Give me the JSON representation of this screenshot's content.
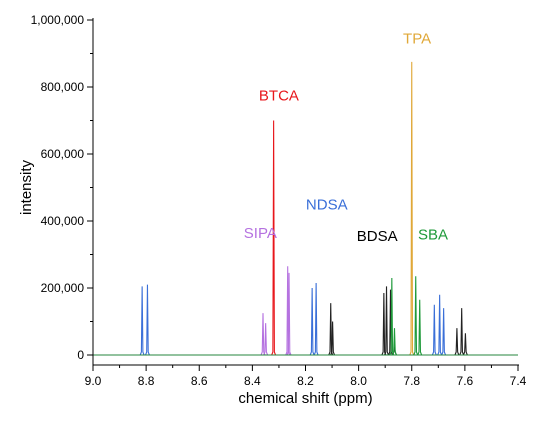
{
  "chart_data": {
    "type": "line",
    "xlabel": "chemical shift (ppm)",
    "ylabel": "intensity",
    "xlim": [
      9.0,
      7.4
    ],
    "ylim": [
      0,
      1000000
    ],
    "x_reversed": true,
    "x_ticks": [
      9.0,
      8.8,
      8.6,
      8.4,
      8.2,
      8.0,
      7.8,
      7.6,
      7.4
    ],
    "x_tick_labels": [
      "9.0",
      "8.8",
      "8.6",
      "8.4",
      "8.2",
      "8.0",
      "7.8",
      "7.6",
      "7.4"
    ],
    "y_ticks": [
      0,
      200000,
      400000,
      600000,
      800000,
      1000000
    ],
    "y_tick_labels": [
      "0",
      "200,000",
      "400,000",
      "600,000",
      "800,000",
      "1,000,000"
    ],
    "grid": false,
    "legend": "none",
    "series": [
      {
        "name": "BTCA",
        "color": "#e8161b",
        "peaks": [
          {
            "x": 8.32,
            "y": 700000
          }
        ]
      },
      {
        "name": "TPA",
        "color": "#e0a838",
        "peaks": [
          {
            "x": 7.8,
            "y": 875000
          }
        ]
      },
      {
        "name": "NDSA",
        "color": "#3a6fd8",
        "peaks": [
          {
            "x": 8.815,
            "y": 205000
          },
          {
            "x": 8.795,
            "y": 210000
          },
          {
            "x": 8.175,
            "y": 200000
          },
          {
            "x": 8.16,
            "y": 215000
          },
          {
            "x": 7.715,
            "y": 150000
          },
          {
            "x": 7.695,
            "y": 180000
          },
          {
            "x": 7.68,
            "y": 140000
          }
        ]
      },
      {
        "name": "SIPA",
        "color": "#b572e0",
        "peaks": [
          {
            "x": 8.36,
            "y": 125000
          },
          {
            "x": 8.35,
            "y": 95000
          },
          {
            "x": 8.267,
            "y": 265000
          },
          {
            "x": 8.262,
            "y": 245000
          }
        ]
      },
      {
        "name": "BDSA",
        "color": "#222222",
        "peaks": [
          {
            "x": 8.105,
            "y": 155000
          },
          {
            "x": 8.098,
            "y": 100000
          },
          {
            "x": 7.905,
            "y": 185000
          },
          {
            "x": 7.895,
            "y": 205000
          },
          {
            "x": 7.88,
            "y": 195000
          },
          {
            "x": 7.865,
            "y": 25000
          },
          {
            "x": 7.63,
            "y": 80000
          },
          {
            "x": 7.612,
            "y": 140000
          },
          {
            "x": 7.598,
            "y": 65000
          }
        ]
      },
      {
        "name": "SBA",
        "color": "#1f9a3a",
        "peaks": [
          {
            "x": 7.875,
            "y": 230000
          },
          {
            "x": 7.865,
            "y": 80000
          },
          {
            "x": 7.785,
            "y": 235000
          },
          {
            "x": 7.77,
            "y": 165000
          }
        ]
      }
    ],
    "annotations": [
      {
        "text": "BTCA",
        "x": 8.3,
        "y": 760000,
        "color": "#e8161b"
      },
      {
        "text": "TPA",
        "x": 7.78,
        "y": 930000,
        "color": "#e0a838"
      },
      {
        "text": "NDSA",
        "x": 8.12,
        "y": 435000,
        "color": "#3a6fd8"
      },
      {
        "text": "SIPA",
        "x": 8.37,
        "y": 350000,
        "color": "#b572e0"
      },
      {
        "text": "BDSA",
        "x": 7.93,
        "y": 340000,
        "color": "#000000"
      },
      {
        "text": "SBA",
        "x": 7.72,
        "y": 345000,
        "color": "#1f9a3a"
      }
    ]
  }
}
